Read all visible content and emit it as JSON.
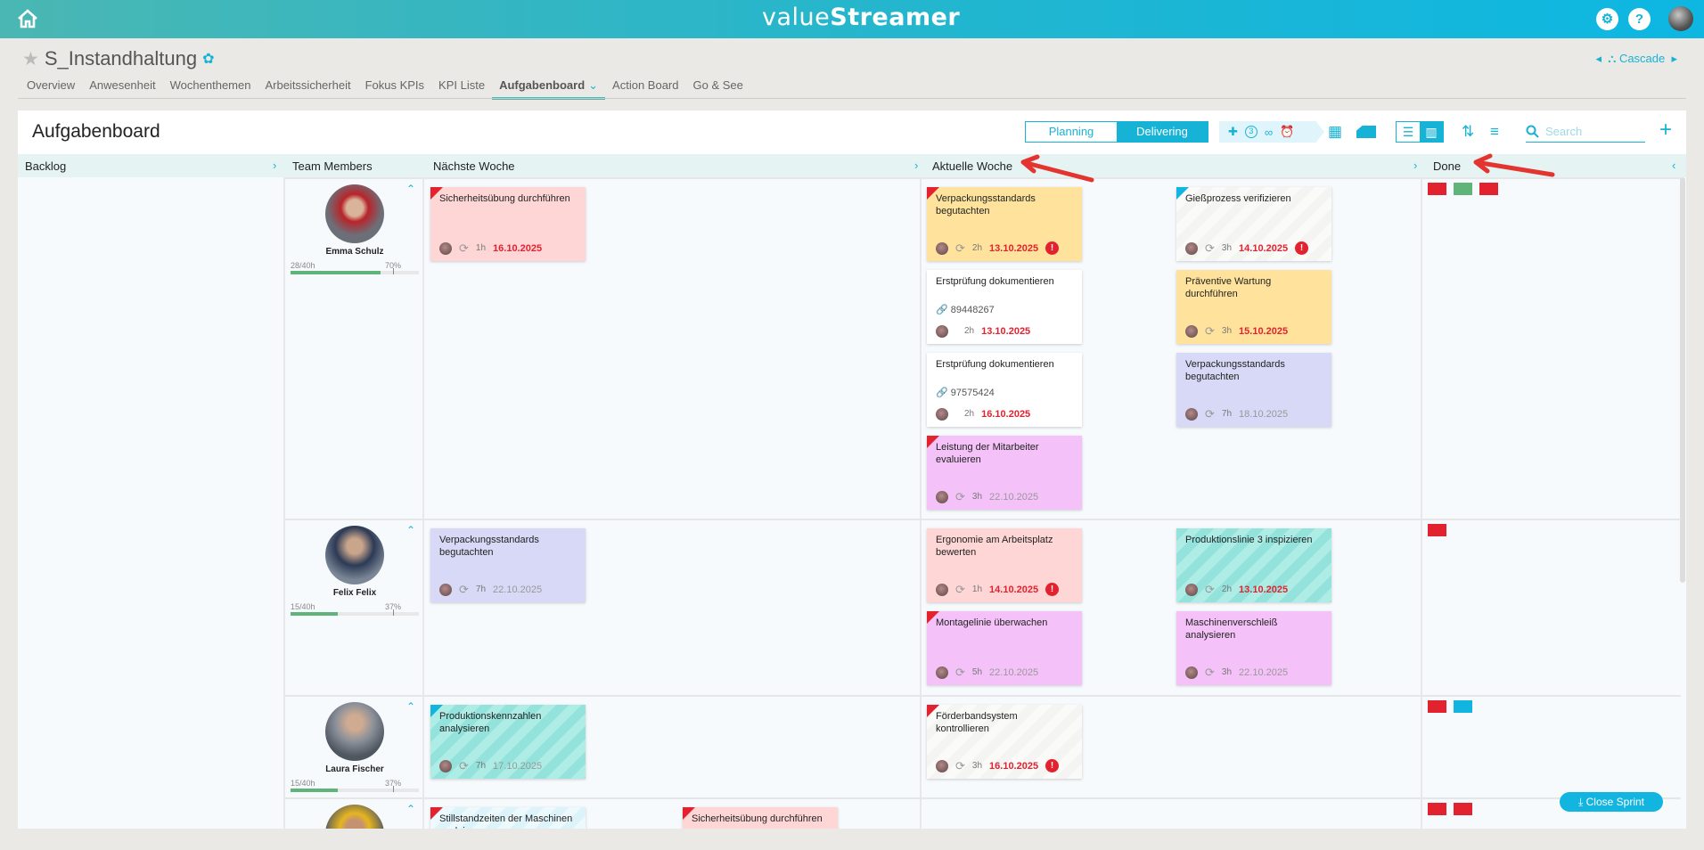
{
  "app": {
    "logo_prefix": "value",
    "logo_suffix": "Streamer",
    "home_icon": "home-icon",
    "settings": "⚙",
    "help": "?"
  },
  "page": {
    "title": "S_Instandhaltung",
    "cascade": "Cascade"
  },
  "tabs": [
    {
      "label": "Overview"
    },
    {
      "label": "Anwesenheit"
    },
    {
      "label": "Wochenthemen"
    },
    {
      "label": "Arbeitssicherheit"
    },
    {
      "label": "Fokus KPIs"
    },
    {
      "label": "KPI Liste"
    },
    {
      "label": "Aufgabenboard",
      "active": true
    },
    {
      "label": "Action Board"
    },
    {
      "label": "Go & See"
    }
  ],
  "board": {
    "title": "Aufgabenboard",
    "planning": "Planning",
    "delivering": "Delivering",
    "chip_count": "3",
    "search_placeholder": "Search",
    "close_sprint": "Close Sprint"
  },
  "columns": {
    "backlog": "Backlog",
    "team": "Team Members",
    "next": "Nächste Woche",
    "current": "Aktuelle Woche",
    "done": "Done"
  },
  "colors": {
    "accent": "#17b3d6",
    "red": "#e3222f",
    "green": "#5fb47a",
    "blue": "#12b5e0"
  },
  "members": [
    {
      "name": "Emma Schulz",
      "hours": "28/40h",
      "percent": "70%",
      "load": 70,
      "next": [
        [
          {
            "title": "Sicherheitsübung durchführen",
            "bg": "pink",
            "corner": "red",
            "h": "1h",
            "date": "16.10.2025",
            "over": true
          }
        ]
      ],
      "current": [
        [
          {
            "title": "Verpackungsstandards begutachten",
            "bg": "yellow",
            "corner": "red",
            "h": "2h",
            "date": "13.10.2025",
            "over": true,
            "alert": true
          },
          {
            "title": "Erstprüfung dokumentieren",
            "bg": "white",
            "link": "89448267",
            "h": "2h",
            "date": "13.10.2025",
            "over": true,
            "nosync": true
          },
          {
            "title": "Erstprüfung dokumentieren",
            "bg": "white",
            "link": "97575424",
            "h": "2h",
            "date": "16.10.2025",
            "over": true,
            "nosync": true
          },
          {
            "title": "Leistung der Mitarbeiter evaluieren",
            "bg": "magenta",
            "corner": "red",
            "h": "3h",
            "date": "22.10.2025"
          }
        ],
        [
          {
            "title": "Gießprozess verifizieren",
            "bg": "grey-stripe",
            "corner": "blue",
            "h": "3h",
            "date": "14.10.2025",
            "over": true,
            "alert": true
          },
          {
            "title": "Präventive Wartung durchführen",
            "bg": "yellow",
            "h": "3h",
            "date": "15.10.2025",
            "over": true
          },
          {
            "title": "Verpackungsstandards begutachten",
            "bg": "lavender",
            "h": "7h",
            "date": "18.10.2025"
          }
        ]
      ],
      "done": [
        "#e3222f",
        "#5fb47a",
        "#e3222f"
      ]
    },
    {
      "name": "Felix Felix",
      "hours": "15/40h",
      "percent": "37%",
      "load": 37,
      "next": [
        [
          {
            "title": "Verpackungsstandards begutachten",
            "bg": "lavender",
            "h": "7h",
            "date": "22.10.2025"
          }
        ]
      ],
      "current": [
        [
          {
            "title": "Ergonomie am Arbeitsplatz bewerten",
            "bg": "pink",
            "h": "1h",
            "date": "14.10.2025",
            "over": true,
            "alert": true
          },
          {
            "title": "Montagelinie überwachen",
            "bg": "magenta",
            "corner": "red",
            "h": "5h",
            "date": "22.10.2025"
          }
        ],
        [
          {
            "title": "Produktionslinie 3 inspizieren",
            "bg": "teal-stripe",
            "h": "2h",
            "date": "13.10.2025",
            "over": true
          },
          {
            "title": "Maschinenverschleiß analysieren",
            "bg": "magenta",
            "h": "3h",
            "date": "22.10.2025"
          }
        ]
      ],
      "done": [
        "#e3222f"
      ]
    },
    {
      "name": "Laura Fischer",
      "hours": "15/40h",
      "percent": "37%",
      "load": 37,
      "next": [
        [
          {
            "title": "Produktionskennzahlen analysieren",
            "bg": "teal-stripe",
            "corner": "blue",
            "h": "7h",
            "date": "17.10.2025"
          }
        ]
      ],
      "current": [
        [
          {
            "title": "Förderbandsystem kontrollieren",
            "bg": "grey-stripe",
            "corner": "red",
            "h": "3h",
            "date": "16.10.2025",
            "over": true,
            "alert": true
          }
        ]
      ],
      "done": [
        "#e3222f",
        "#12b5e0"
      ]
    },
    {
      "name": "",
      "hours": "",
      "percent": "",
      "load": 0,
      "next": [
        [
          {
            "title": "Stillstandzeiten der Maschinen evaluieren",
            "bg": "blue-stripe",
            "corner": "red",
            "h": "",
            "date": ""
          }
        ],
        [
          {
            "title": "Sicherheitsübung durchführen",
            "bg": "pink",
            "corner": "red",
            "h": "",
            "date": ""
          }
        ]
      ],
      "current": [],
      "done": [
        "#e3222f",
        "#e3222f"
      ]
    }
  ]
}
